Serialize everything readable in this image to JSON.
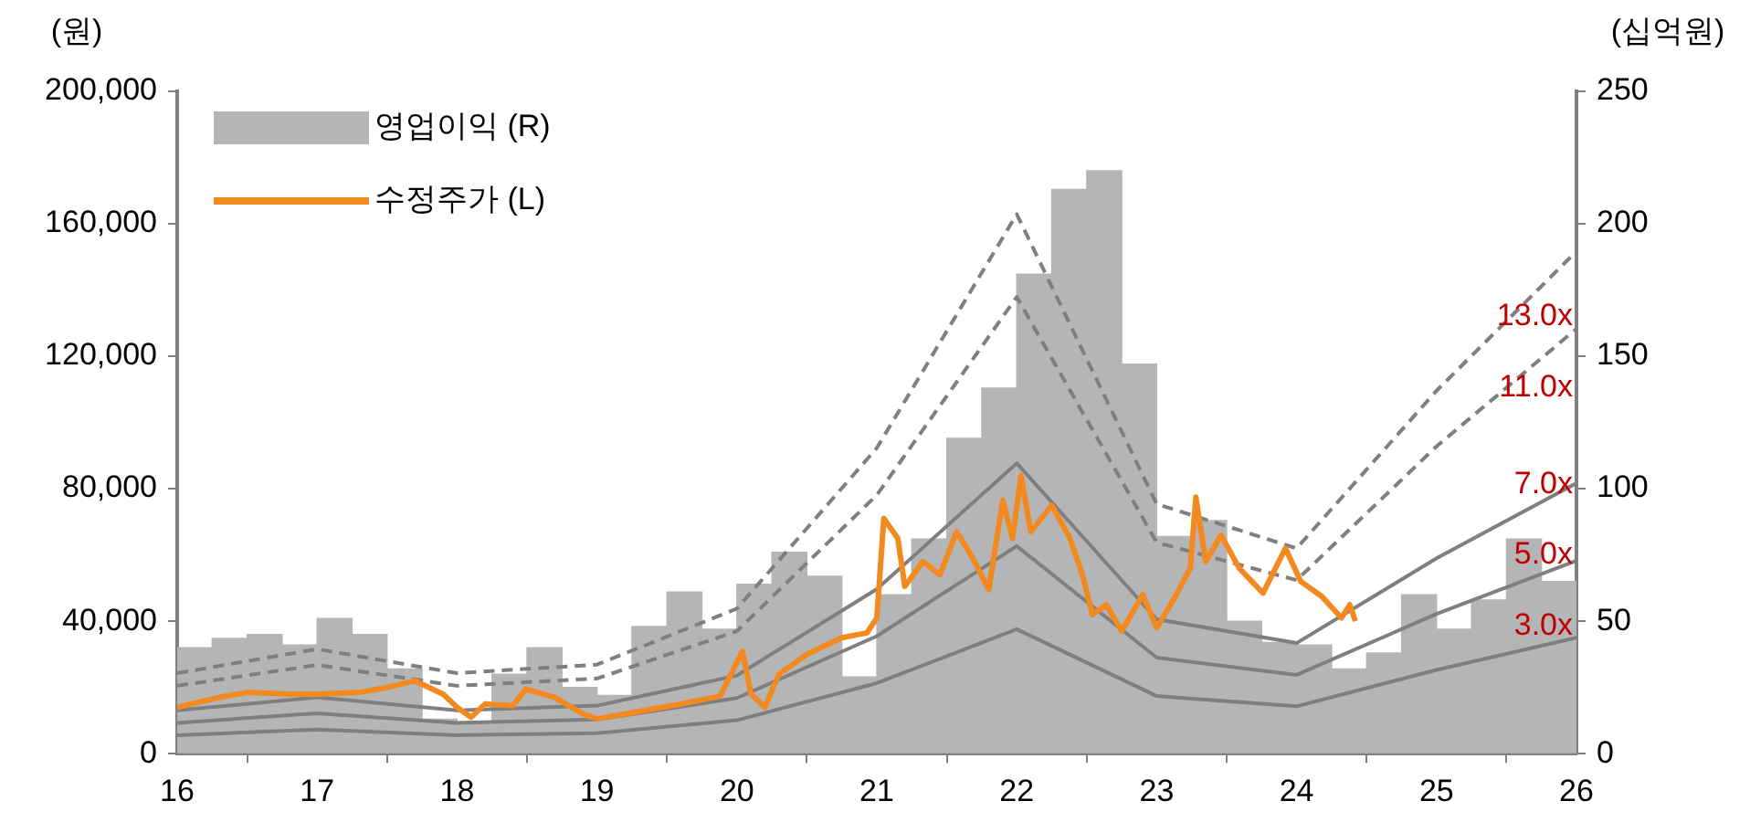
{
  "chart_data": {
    "type": "line",
    "ylabel": "(원)",
    "y2label": "(십억원)",
    "xlim": [
      16,
      26
    ],
    "xticks": [
      16,
      17,
      18,
      19,
      20,
      21,
      22,
      23,
      24,
      25,
      26
    ],
    "ylim": [
      0,
      200000
    ],
    "yticks": [
      {
        "value": 0,
        "label": "0"
      },
      {
        "value": 40000,
        "label": "40,000"
      },
      {
        "value": 80000,
        "label": "80,000"
      },
      {
        "value": 120000,
        "label": "120,000"
      },
      {
        "value": 160000,
        "label": "160,000"
      },
      {
        "value": 200000,
        "label": "200,000"
      }
    ],
    "y2lim": [
      0,
      250
    ],
    "y2ticks": [
      0,
      50,
      100,
      150,
      200,
      250
    ],
    "legend": "top left",
    "grid": false,
    "marker": "none",
    "series": [
      {
        "name": "영업이익 (R)",
        "type": "bar",
        "axis": "y2",
        "color": "#b4b5b7",
        "x": [
          16.125,
          16.375,
          16.625,
          16.875,
          17.125,
          17.375,
          17.625,
          17.875,
          18.125,
          18.375,
          18.625,
          18.875,
          19.125,
          19.375,
          19.625,
          19.875,
          20.125,
          20.375,
          20.625,
          20.875,
          21.125,
          21.375,
          21.625,
          21.875,
          22.125,
          22.375,
          22.625,
          22.875,
          23.125,
          23.375,
          23.625,
          23.875,
          24.125,
          24.375,
          24.625,
          24.875,
          25.125,
          25.375,
          25.625,
          25.875
        ],
        "values": [
          40,
          43.5,
          45,
          41,
          51,
          45,
          32,
          13,
          12,
          30,
          40,
          25,
          22,
          48,
          61,
          47,
          64,
          76,
          67,
          29,
          60,
          81,
          119,
          138,
          181,
          213,
          220,
          147,
          82,
          88,
          50,
          42,
          41,
          32,
          38,
          60,
          47,
          58,
          81,
          65
        ]
      },
      {
        "color": "#7f7f7f",
        "line_style": "solid",
        "x": [
          16,
          17,
          18,
          19,
          20,
          21,
          22,
          23,
          24,
          25,
          26
        ],
        "values": [
          5600,
          7300,
          5600,
          6200,
          10100,
          21300,
          37600,
          17400,
          14300,
          25300,
          35000
        ]
      },
      {
        "color": "#7f7f7f",
        "line_style": "solid",
        "x": [
          16,
          17,
          18,
          19,
          20,
          21,
          22,
          23,
          24,
          25,
          26
        ],
        "values": [
          9300,
          12200,
          9300,
          10300,
          16800,
          35500,
          62700,
          29000,
          23800,
          42200,
          58300
        ]
      },
      {
        "color": "#7f7f7f",
        "line_style": "solid",
        "x": [
          16,
          17,
          18,
          19,
          20,
          21,
          22,
          23,
          24,
          25,
          26
        ],
        "values": [
          13100,
          17000,
          13100,
          14500,
          23600,
          49700,
          87700,
          40600,
          33400,
          59000,
          81700
        ]
      },
      {
        "color": "#7f7f7f",
        "line_style": "dashed",
        "x": [
          16,
          17,
          18,
          19,
          20,
          21,
          22,
          23,
          24,
          25,
          26
        ],
        "values": [
          20500,
          26800,
          20500,
          22700,
          37000,
          78100,
          137900,
          63800,
          52400,
          92800,
          128300
        ]
      },
      {
        "color": "#7f7f7f",
        "line_style": "dashed",
        "x": [
          16,
          17,
          18,
          19,
          20,
          21,
          22,
          23,
          24,
          25,
          26
        ],
        "values": [
          24300,
          31600,
          24300,
          26900,
          43800,
          92300,
          162900,
          75400,
          62000,
          109600,
          151700
        ]
      },
      {
        "name": "수정주가 (L)",
        "color": "#f28a20",
        "line_style": "solid",
        "x": [
          16.0,
          16.3,
          16.5,
          16.8,
          17.0,
          17.3,
          17.5,
          17.7,
          17.9,
          18.0,
          18.1,
          18.2,
          18.4,
          18.49,
          18.7,
          18.9,
          19.0,
          19.2,
          19.4,
          19.6,
          19.88,
          20.04,
          20.1,
          20.2,
          20.3,
          20.5,
          20.75,
          20.93,
          21.0,
          21.05,
          21.15,
          21.2,
          21.33,
          21.45,
          21.57,
          21.68,
          21.8,
          21.9,
          21.97,
          22.03,
          22.1,
          22.25,
          22.38,
          22.47,
          22.54,
          22.64,
          22.75,
          22.9,
          23.0,
          23.14,
          23.24,
          23.28,
          23.35,
          23.46,
          23.59,
          23.76,
          23.92,
          24.03,
          24.18,
          24.32,
          24.38,
          24.42
        ],
        "values": [
          14000,
          17000,
          18500,
          18000,
          18000,
          18500,
          20000,
          22000,
          18000,
          14000,
          11000,
          15000,
          14500,
          19500,
          17000,
          12000,
          10500,
          12000,
          13500,
          15000,
          17400,
          31000,
          18000,
          14000,
          24000,
          30000,
          35000,
          36500,
          41000,
          71000,
          65000,
          50500,
          58000,
          54000,
          67000,
          59500,
          49500,
          76500,
          65000,
          84000,
          67000,
          75000,
          65000,
          54000,
          42000,
          45000,
          37000,
          48000,
          38000,
          48000,
          56000,
          77500,
          58000,
          66000,
          56000,
          48500,
          62000,
          52000,
          47500,
          41000,
          45000,
          40000
        ]
      }
    ],
    "annotations": [
      "3.0x",
      "5.0x",
      "7.0x",
      "11.0x",
      "13.0x"
    ]
  }
}
